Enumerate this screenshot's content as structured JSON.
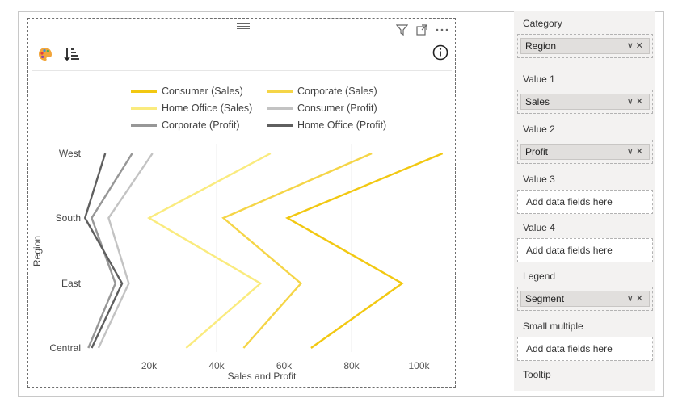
{
  "chart_data": {
    "type": "line",
    "orientation": "horizontal",
    "categories": [
      "West",
      "South",
      "East",
      "Central"
    ],
    "xlabel": "Sales and Profit",
    "ylabel": "Region",
    "xticks": [
      "20k",
      "40k",
      "60k",
      "80k",
      "100k"
    ],
    "xlim": [
      0,
      110000
    ],
    "grid": true,
    "legend_position": "top",
    "series": [
      {
        "name": "Consumer (Sales)",
        "color": "#F2C811",
        "values": [
          107000,
          61000,
          95000,
          68000
        ]
      },
      {
        "name": "Corporate (Sales)",
        "color": "#F5D547",
        "values": [
          86000,
          42000,
          65000,
          48000
        ]
      },
      {
        "name": "Home Office (Sales)",
        "color": "#FAEB7E",
        "values": [
          56000,
          20000,
          53000,
          31000
        ]
      },
      {
        "name": "Consumer (Profit)",
        "color": "#C3C3C3",
        "values": [
          21000,
          8000,
          14000,
          5000
        ]
      },
      {
        "name": "Corporate (Profit)",
        "color": "#979797",
        "values": [
          15000,
          3000,
          10000,
          2000
        ]
      },
      {
        "name": "Home Office (Profit)",
        "color": "#5F5F5F",
        "values": [
          7000,
          1000,
          12000,
          3000
        ]
      }
    ]
  },
  "fields_pane": {
    "wells": [
      {
        "label": "Category",
        "value": "Region"
      },
      {
        "label": "Value 1",
        "value": "Sales"
      },
      {
        "label": "Value 2",
        "value": "Profit"
      },
      {
        "label": "Value 3",
        "placeholder": "Add data fields here"
      },
      {
        "label": "Value 4",
        "placeholder": "Add data fields here"
      },
      {
        "label": "Legend",
        "value": "Segment"
      },
      {
        "label": "Small multiple",
        "placeholder": "Add data fields here"
      },
      {
        "label": "Tooltip"
      }
    ]
  },
  "icons": {
    "palette": "palette-icon",
    "sort": "sort-icon",
    "info": "info-icon",
    "filter": "filter-icon",
    "focus": "focus-mode-icon",
    "more": "more-options-icon"
  }
}
